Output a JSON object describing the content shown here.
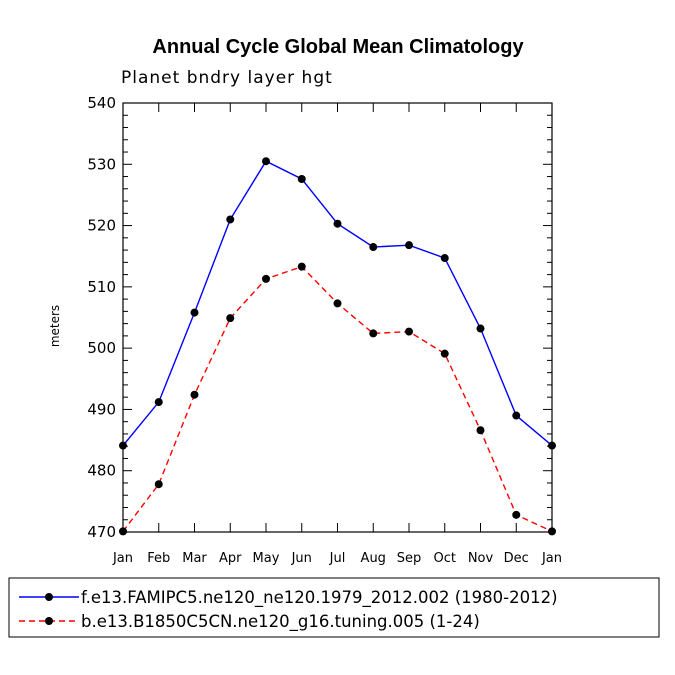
{
  "chart_data": {
    "type": "line",
    "title": "Annual Cycle Global Mean Climatology",
    "subtitle": "Planet bndry layer hgt",
    "xlabel": "",
    "ylabel": "meters",
    "categories": [
      "Jan",
      "Feb",
      "Mar",
      "Apr",
      "May",
      "Jun",
      "Jul",
      "Aug",
      "Sep",
      "Oct",
      "Nov",
      "Dec",
      "Jan"
    ],
    "ylim": [
      470,
      540
    ],
    "yticks": [
      470,
      480,
      490,
      500,
      510,
      520,
      530,
      540
    ],
    "series": [
      {
        "name": "f.e13.FAMIPC5.ne120_ne120.1979_2012.002 (1980-2012)",
        "color": "#0000ff",
        "dash": "solid",
        "values": [
          484.1,
          491.2,
          505.8,
          521.0,
          530.5,
          527.6,
          520.3,
          516.5,
          516.8,
          514.7,
          503.2,
          489.0,
          484.1
        ]
      },
      {
        "name": "b.e13.B1850C5CN.ne120_g16.tuning.005 (1-24)",
        "color": "#ff0000",
        "dash": "dashed",
        "values": [
          470.1,
          477.8,
          492.4,
          504.9,
          511.3,
          513.3,
          507.3,
          502.4,
          502.7,
          499.1,
          486.6,
          472.8,
          470.1
        ]
      }
    ],
    "grid": false,
    "legend_position": "bottom"
  }
}
